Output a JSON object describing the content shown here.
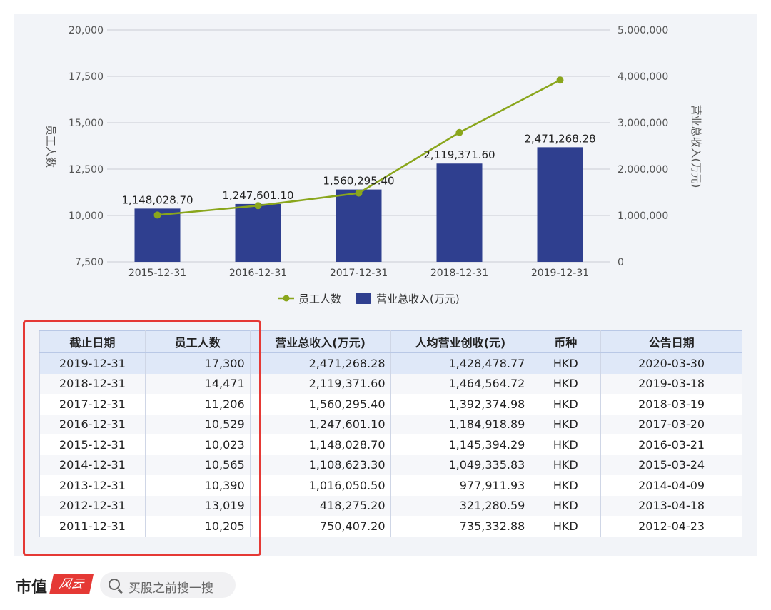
{
  "chart_data": {
    "type": "bar+line",
    "categories": [
      "2015-12-31",
      "2016-12-31",
      "2017-12-31",
      "2018-12-31",
      "2019-12-31"
    ],
    "series": [
      {
        "name": "员工人数",
        "type": "line",
        "axis": "left",
        "color": "#8aa61c",
        "values": [
          10023,
          10529,
          11206,
          14471,
          17300
        ]
      },
      {
        "name": "营业总收入(万元)",
        "type": "bar",
        "axis": "right",
        "color": "#2f3f8f",
        "values": [
          1148028.7,
          1247601.1,
          1560295.4,
          2119371.6,
          2471268.28
        ],
        "labels": [
          "1,148,028.70",
          "1,247,601.10",
          "1,560,295.40",
          "2,119,371.60",
          "2,471,268.28"
        ]
      }
    ],
    "left_axis": {
      "label": "员工人数",
      "range": [
        7500,
        20000
      ],
      "ticks": [
        "7,500",
        "10,000",
        "12,500",
        "15,000",
        "17,500",
        "20,000"
      ]
    },
    "right_axis": {
      "label": "营业总收入(万元)",
      "range": [
        0,
        5000000
      ],
      "ticks": [
        "0",
        "1,000,000",
        "2,000,000",
        "3,000,000",
        "4,000,000",
        "5,000,000"
      ]
    },
    "grid": true,
    "legend_position": "bottom"
  },
  "table": {
    "headers": [
      "截止日期",
      "员工人数",
      "营业总收入(万元)",
      "人均营业创收(元)",
      "币种",
      "公告日期"
    ],
    "rows": [
      [
        "2019-12-31",
        "17,300",
        "2,471,268.28",
        "1,428,478.77",
        "HKD",
        "2020-03-30"
      ],
      [
        "2018-12-31",
        "14,471",
        "2,119,371.60",
        "1,464,564.72",
        "HKD",
        "2019-03-18"
      ],
      [
        "2017-12-31",
        "11,206",
        "1,560,295.40",
        "1,392,374.98",
        "HKD",
        "2018-03-19"
      ],
      [
        "2016-12-31",
        "10,529",
        "1,247,601.10",
        "1,184,918.89",
        "HKD",
        "2017-03-20"
      ],
      [
        "2015-12-31",
        "10,023",
        "1,148,028.70",
        "1,145,394.29",
        "HKD",
        "2016-03-21"
      ],
      [
        "2014-12-31",
        "10,565",
        "1,108,623.30",
        "1,049,335.83",
        "HKD",
        "2015-03-24"
      ],
      [
        "2013-12-31",
        "10,390",
        "1,016,050.50",
        "977,911.93",
        "HKD",
        "2014-04-09"
      ],
      [
        "2012-12-31",
        "13,019",
        "418,275.20",
        "321,280.59",
        "HKD",
        "2013-04-18"
      ],
      [
        "2011-12-31",
        "10,205",
        "750,407.20",
        "735,332.88",
        "HKD",
        "2012-04-23"
      ]
    ]
  },
  "footer": {
    "brand": "市值",
    "brand_mark": "风云",
    "search_placeholder": "买股之前搜一搜"
  },
  "colors": {
    "highlight_box": "#e53935",
    "bar": "#2f3f8f",
    "line": "#8aa61c"
  }
}
